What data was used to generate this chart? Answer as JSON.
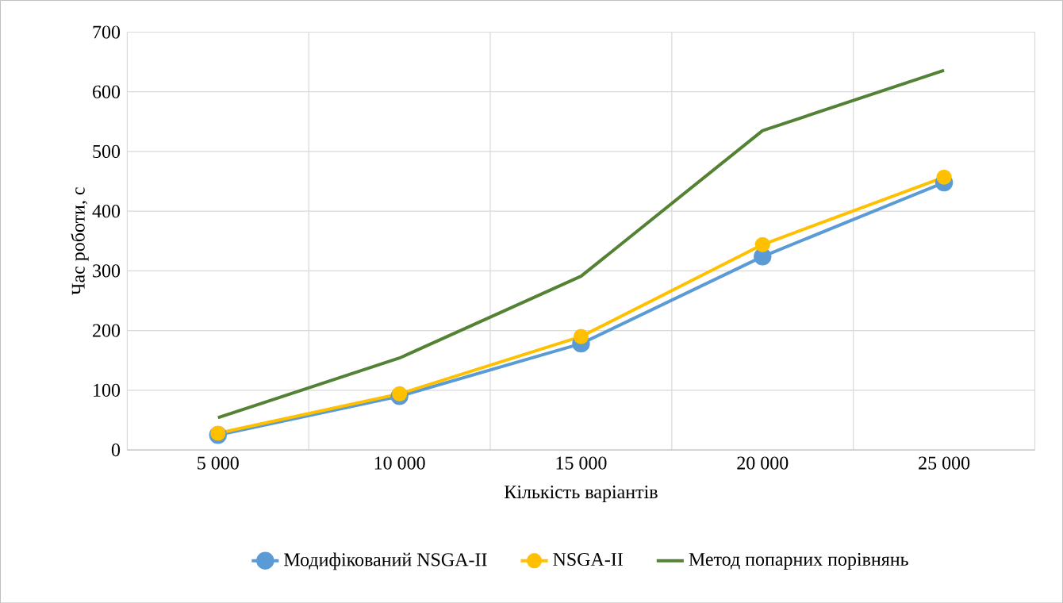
{
  "chart_data": {
    "type": "line",
    "xlabel": "Кількість варіантів",
    "ylabel": "Час роботи, с",
    "categories": [
      "5 000",
      "10 000",
      "15 000",
      "20 000",
      "25 000"
    ],
    "series": [
      {
        "name": "Модифікований NSGA-II",
        "color": "#5b9bd5",
        "marker": "circle",
        "values": [
          25,
          90,
          178,
          324,
          448
        ]
      },
      {
        "name": "NSGA-II",
        "color": "#ffc000",
        "marker": "circle",
        "values": [
          28,
          94,
          190,
          344,
          457
        ]
      },
      {
        "name": "Метод попарних порівнянь",
        "color": "#548235",
        "marker": "none",
        "values": [
          54,
          154,
          291,
          535,
          636
        ]
      }
    ],
    "ylim": [
      0,
      700
    ],
    "yticks": [
      0,
      100,
      200,
      300,
      400,
      500,
      600,
      700
    ],
    "grid": true,
    "legend": "bottom",
    "line_style": "solid"
  }
}
